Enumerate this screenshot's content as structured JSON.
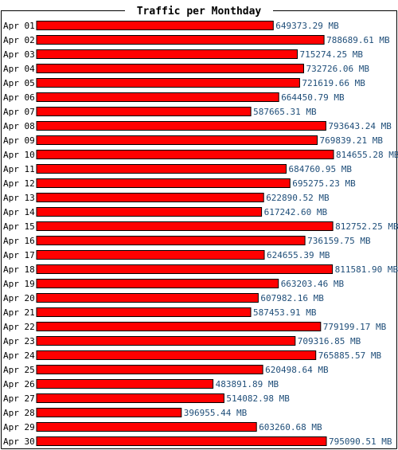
{
  "chart_data": {
    "type": "bar",
    "orientation": "horizontal",
    "title": "Traffic per Monthday",
    "unit": "MB",
    "bar_color": "#ff0000",
    "label_color": "#1f4e79",
    "categories": [
      "Apr 01",
      "Apr 02",
      "Apr 03",
      "Apr 04",
      "Apr 05",
      "Apr 06",
      "Apr 07",
      "Apr 08",
      "Apr 09",
      "Apr 10",
      "Apr 11",
      "Apr 12",
      "Apr 13",
      "Apr 14",
      "Apr 15",
      "Apr 16",
      "Apr 17",
      "Apr 18",
      "Apr 19",
      "Apr 20",
      "Apr 21",
      "Apr 22",
      "Apr 23",
      "Apr 24",
      "Apr 25",
      "Apr 26",
      "Apr 27",
      "Apr 28",
      "Apr 29",
      "Apr 30"
    ],
    "values": [
      649373.29,
      788689.61,
      715274.25,
      732726.06,
      721619.66,
      664450.79,
      587665.31,
      793643.24,
      769839.21,
      814655.28,
      684760.95,
      695275.23,
      622890.52,
      617242.6,
      812752.25,
      736159.75,
      624655.39,
      811581.9,
      663203.46,
      607982.16,
      587453.91,
      779199.17,
      709316.85,
      765885.57,
      620498.64,
      483891.89,
      514082.98,
      396955.44,
      603260.68,
      795090.51
    ],
    "value_labels": [
      "649373.29 MB",
      "788689.61 MB",
      "715274.25 MB",
      "732726.06 MB",
      "721619.66 MB",
      "664450.79 MB",
      "587665.31 MB",
      "793643.24 MB",
      "769839.21 MB",
      "814655.28 MB",
      "684760.95 MB",
      "695275.23 MB",
      "622890.52 MB",
      "617242.60 MB",
      "812752.25 MB",
      "736159.75 MB",
      "624655.39 MB",
      "811581.90 MB",
      "663203.46 MB",
      "607982.16 MB",
      "587453.91 MB",
      "779199.17 MB",
      "709316.85 MB",
      "765885.57 MB",
      "620498.64 MB",
      "483891.89 MB",
      "514082.98 MB",
      "396955.44 MB",
      "603260.68 MB",
      "795090.51 MB"
    ],
    "xlim": [
      0,
      814655.28
    ]
  }
}
